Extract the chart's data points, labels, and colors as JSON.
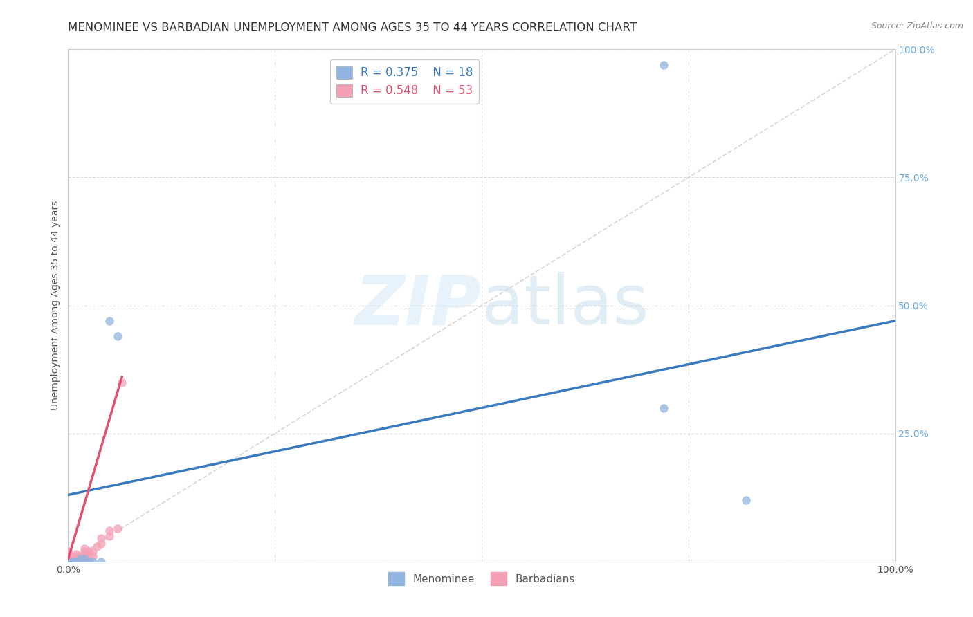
{
  "title": "MENOMINEE VS BARBADIAN UNEMPLOYMENT AMONG AGES 35 TO 44 YEARS CORRELATION CHART",
  "source": "Source: ZipAtlas.com",
  "ylabel": "Unemployment Among Ages 35 to 44 years",
  "xlim": [
    0,
    1.0
  ],
  "ylim": [
    0,
    1.0
  ],
  "menominee_R": 0.375,
  "menominee_N": 18,
  "barbadian_R": 0.548,
  "barbadian_N": 53,
  "menominee_color": "#92b4e0",
  "barbadian_color": "#f4a0b4",
  "menominee_line_color": "#3a7abf",
  "barbadian_line_color": "#e05070",
  "background_color": "#ffffff",
  "title_fontsize": 12,
  "axis_label_fontsize": 10,
  "tick_fontsize": 10,
  "right_tick_color": "#6aaadd",
  "menominee_x": [
    0.0,
    0.0,
    0.0,
    0.0,
    0.0,
    0.005,
    0.008,
    0.01,
    0.015,
    0.02,
    0.025,
    0.03,
    0.04,
    0.05,
    0.06,
    0.72,
    0.82
  ],
  "menominee_y": [
    0.0,
    0.0,
    0.0,
    0.0,
    0.0,
    0.0,
    0.0,
    0.0,
    0.005,
    0.005,
    0.0,
    0.0,
    0.0,
    0.47,
    0.44,
    0.3,
    0.12
  ],
  "menominee_outlier_x": [
    0.72
  ],
  "menominee_outlier_y": [
    0.97
  ],
  "barbadian_x": [
    0.0,
    0.0,
    0.0,
    0.0,
    0.0,
    0.0,
    0.0,
    0.0,
    0.0,
    0.0,
    0.0,
    0.0,
    0.0,
    0.0,
    0.0,
    0.0,
    0.0,
    0.0,
    0.0,
    0.0,
    0.0,
    0.0,
    0.0,
    0.0,
    0.0,
    0.0,
    0.0,
    0.0,
    0.0,
    0.005,
    0.008,
    0.01,
    0.01,
    0.01,
    0.01,
    0.015,
    0.015,
    0.02,
    0.02,
    0.02,
    0.02,
    0.02,
    0.025,
    0.025,
    0.03,
    0.03,
    0.035,
    0.04,
    0.04,
    0.05,
    0.05,
    0.06,
    0.065
  ],
  "barbadian_y": [
    0.0,
    0.0,
    0.0,
    0.0,
    0.0,
    0.0,
    0.0,
    0.0,
    0.0,
    0.0,
    0.0,
    0.0,
    0.0,
    0.0,
    0.0,
    0.0,
    0.0,
    0.0,
    0.0,
    0.0,
    0.005,
    0.005,
    0.01,
    0.01,
    0.01,
    0.015,
    0.015,
    0.02,
    0.02,
    0.0,
    0.0,
    0.005,
    0.005,
    0.01,
    0.015,
    0.0,
    0.01,
    0.005,
    0.01,
    0.015,
    0.02,
    0.025,
    0.01,
    0.02,
    0.01,
    0.02,
    0.03,
    0.035,
    0.045,
    0.05,
    0.06,
    0.065,
    0.35
  ],
  "men_line_x0": 0.0,
  "men_line_x1": 1.0,
  "men_line_y0": 0.13,
  "men_line_y1": 0.47,
  "barb_line_x0": 0.0,
  "barb_line_x1": 0.065,
  "barb_line_y0": 0.005,
  "barb_line_y1": 0.36,
  "diag_line_x0": 0.0,
  "diag_line_x1": 1.0,
  "diag_line_y0": 0.0,
  "diag_line_y1": 1.0
}
